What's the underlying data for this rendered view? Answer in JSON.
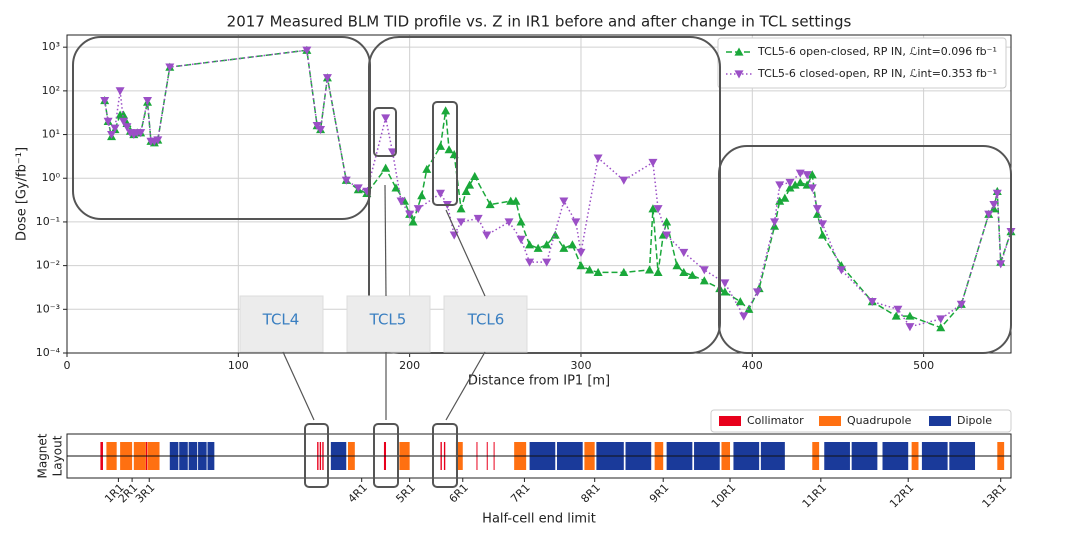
{
  "chart_data": [
    {
      "type": "line",
      "title": "2017 Measured BLM TID profile vs. Z in IR1 before and after change in TCL settings",
      "xlabel": "Distance from IP1 [m]",
      "ylabel": "Dose [Gy/fb⁻¹]",
      "xlim": [
        0,
        551
      ],
      "xticks": [
        0,
        100,
        200,
        300,
        400,
        500
      ],
      "ylim": [
        0.0001,
        1900
      ],
      "log_y": true,
      "yticks": [
        {
          "value": 0.0001,
          "label": "10⁻⁴"
        },
        {
          "value": 0.001,
          "label": "10⁻³"
        },
        {
          "value": 0.01,
          "label": "10⁻²"
        },
        {
          "value": 0.1,
          "label": "10⁻¹"
        },
        {
          "value": 1,
          "label": "10⁰"
        },
        {
          "value": 10,
          "label": "10¹"
        },
        {
          "value": 100,
          "label": "10²"
        },
        {
          "value": 1000,
          "label": "10³"
        }
      ],
      "grid": true,
      "legend": "upper right",
      "annotations": [
        "TCL4",
        "TCL5",
        "TCL6"
      ],
      "series": [
        {
          "name": "TCL5-6 open-closed, RP IN, ℒint=0.096 fb⁻¹",
          "color": "#1aa83a",
          "marker": "triangle-up",
          "line_style": "dashed",
          "x": [
            22,
            24,
            26,
            28,
            31,
            33,
            35,
            37,
            39,
            41,
            43,
            47,
            49,
            51,
            53,
            60,
            140,
            146,
            148,
            152,
            163,
            170,
            175,
            186,
            192,
            197,
            200,
            202,
            207,
            210,
            218,
            221,
            223,
            226,
            230,
            233,
            235,
            238,
            247,
            259,
            262,
            265,
            270,
            275,
            280,
            285,
            290,
            295,
            300,
            305,
            310,
            325,
            340,
            342,
            345,
            348,
            350,
            356,
            360,
            365,
            372,
            381,
            384,
            393,
            398,
            404,
            413,
            416,
            419,
            422,
            425,
            428,
            432,
            435,
            438,
            441,
            452,
            470,
            484,
            492,
            510,
            522,
            538,
            541,
            543,
            545,
            551
          ],
          "values": [
            60,
            20,
            9,
            13,
            28,
            28,
            18,
            12,
            10,
            11,
            11,
            55,
            7,
            6.5,
            7.5,
            350,
            850,
            16,
            13,
            200,
            0.9,
            0.55,
            0.45,
            1.7,
            0.6,
            0.3,
            0.15,
            0.1,
            0.4,
            1.6,
            5.4,
            35,
            4.5,
            3.5,
            0.2,
            0.5,
            0.7,
            1.1,
            0.25,
            0.3,
            0.3,
            0.1,
            0.03,
            0.025,
            0.03,
            0.05,
            0.025,
            0.03,
            0.01,
            0.008,
            0.007,
            0.007,
            0.008,
            0.2,
            0.007,
            0.05,
            0.1,
            0.01,
            0.007,
            0.006,
            0.0045,
            0.003,
            0.0025,
            0.0015,
            0.001,
            0.003,
            0.08,
            0.3,
            0.35,
            0.6,
            0.7,
            0.8,
            0.7,
            1.2,
            0.15,
            0.05,
            0.01,
            0.0015,
            0.0007,
            0.0007,
            0.00038,
            0.0013,
            0.15,
            0.2,
            0.5,
            0.012,
            0.06
          ]
        },
        {
          "name": "TCL5-6 closed-open, RP IN, ℒint=0.353 fb⁻¹",
          "color": "#9b4fc6",
          "marker": "triangle-down",
          "line_style": "dotted",
          "x": [
            22,
            24,
            26,
            28,
            31,
            33,
            35,
            37,
            39,
            41,
            43,
            47,
            49,
            51,
            53,
            60,
            140,
            146,
            148,
            152,
            163,
            170,
            175,
            186,
            190,
            195,
            200,
            205,
            218,
            222,
            226,
            230,
            240,
            245,
            258,
            265,
            270,
            280,
            290,
            297,
            300,
            310,
            325,
            342,
            345,
            350,
            360,
            372,
            384,
            395,
            403,
            413,
            416,
            422,
            428,
            432,
            435,
            438,
            441,
            452,
            470,
            485,
            492,
            510,
            522,
            538,
            541,
            543,
            545,
            551
          ],
          "values": [
            60,
            20,
            10,
            14,
            100,
            20,
            15,
            11,
            10,
            11,
            11,
            60,
            7,
            7,
            7.5,
            350,
            850,
            16,
            13,
            200,
            0.9,
            0.6,
            0.5,
            24,
            4,
            0.3,
            0.15,
            0.2,
            0.45,
            0.25,
            0.05,
            0.1,
            0.12,
            0.05,
            0.1,
            0.04,
            0.012,
            0.012,
            0.3,
            0.1,
            0.02,
            2.9,
            0.9,
            2.3,
            0.2,
            0.05,
            0.02,
            0.008,
            0.004,
            0.0007,
            0.0025,
            0.1,
            0.7,
            0.8,
            1.3,
            1.2,
            0.6,
            0.2,
            0.09,
            0.008,
            0.0015,
            0.001,
            0.0004,
            0.0006,
            0.0013,
            0.15,
            0.25,
            0.45,
            0.011,
            0.06
          ]
        }
      ]
    },
    {
      "type": "layout",
      "xlabel": "Half-cell end limit",
      "ylabel": [
        "Magnet",
        "Layout"
      ],
      "xlim": [
        0,
        551
      ],
      "legend": "upper right",
      "xticks": [
        {
          "value": 30,
          "label": "1R1"
        },
        {
          "value": 38,
          "label": "2R1"
        },
        {
          "value": 48,
          "label": "3R1"
        },
        {
          "value": 172,
          "label": "4R1"
        },
        {
          "value": 200,
          "label": "5R1"
        },
        {
          "value": 231,
          "label": "6R1"
        },
        {
          "value": 267,
          "label": "7R1"
        },
        {
          "value": 308,
          "label": "8R1"
        },
        {
          "value": 348,
          "label": "9R1"
        },
        {
          "value": 387,
          "label": "10R1"
        },
        {
          "value": 440,
          "label": "11R1"
        },
        {
          "value": 491,
          "label": "12R1"
        },
        {
          "value": 545,
          "label": "13R1"
        }
      ],
      "series": [
        {
          "name": "Collimator",
          "color": "#e8001c",
          "starts": [
            19.5,
            46,
            146,
            147.5,
            149,
            185,
            218,
            220,
            239,
            245,
            249
          ],
          "ends": [
            21,
            46.8,
            146.8,
            148.3,
            149.8,
            186.2,
            218.8,
            220.8,
            239.5,
            245.5,
            249.5
          ]
        },
        {
          "name": "Quadrupole",
          "color": "#ff7011",
          "starts": [
            23,
            31,
            39,
            47,
            164,
            194,
            227,
            261,
            302,
            343,
            382,
            435,
            493,
            543
          ],
          "ends": [
            29,
            38,
            46,
            54,
            168,
            200,
            231,
            268,
            308,
            348,
            387,
            439,
            497,
            547
          ]
        },
        {
          "name": "Dipole",
          "color": "#1a3a9a",
          "starts": [
            60,
            65.5,
            71,
            76.5,
            82,
            154,
            270,
            286,
            309,
            326,
            350,
            366,
            389,
            405,
            442,
            458,
            476,
            499,
            515
          ],
          "ends": [
            65,
            70.5,
            76,
            81.5,
            86,
            163,
            285,
            301,
            325,
            341,
            365,
            381,
            404,
            419,
            457,
            473,
            491,
            514,
            530
          ]
        }
      ]
    }
  ]
}
